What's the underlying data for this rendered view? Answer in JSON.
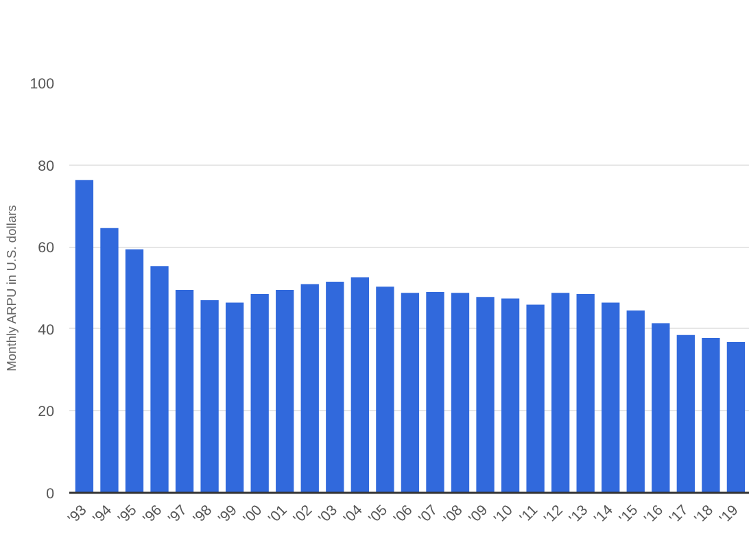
{
  "chart_data": {
    "type": "bar",
    "ylabel": "Monthly ARPU in U.S. dollars",
    "categories": [
      "'93",
      "'94",
      "'95",
      "'96",
      "'97",
      "'98",
      "'99",
      "'00",
      "'01",
      "'02",
      "'03",
      "'04",
      "'05",
      "'06",
      "'07",
      "'08",
      "'09",
      "'10",
      "'11",
      "'12",
      "'13",
      "'14",
      "'15",
      "'16",
      "'17",
      "'18",
      "'19"
    ],
    "values": [
      76.3,
      64.6,
      59.4,
      55.3,
      49.5,
      47.0,
      46.4,
      48.5,
      49.5,
      50.9,
      51.5,
      52.6,
      50.3,
      48.8,
      49.0,
      48.8,
      47.8,
      47.4,
      45.9,
      48.8,
      48.5,
      46.4,
      44.5,
      41.4,
      38.5,
      37.8,
      36.8
    ],
    "color": "#3169dc",
    "ylim": [
      0,
      100
    ],
    "yticks": [
      0,
      20,
      40,
      60,
      80,
      100
    ],
    "grid": "y"
  }
}
